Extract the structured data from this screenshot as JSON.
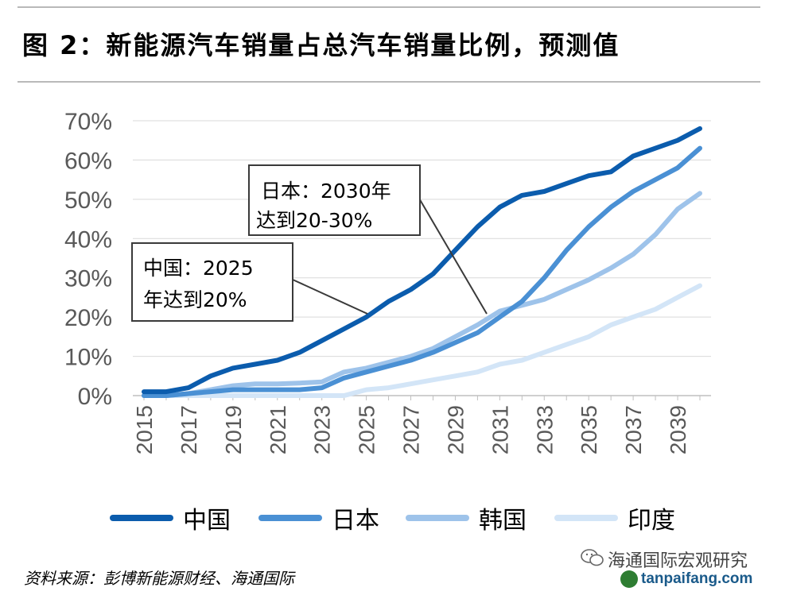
{
  "title": "图 2：新能源汽车销量占总汽车销量比例，预测值",
  "source": "资料来源：彭博新能源财经、海通国际",
  "watermark": {
    "account": "海通国际宏观研究",
    "site": "tanpaifang.com"
  },
  "annotations": [
    {
      "line1": "日本：2030年",
      "line2": "达到20-30%"
    },
    {
      "line1": "中国：2025",
      "line2": "年达到20%"
    }
  ],
  "colors": {
    "china": "#0b5cad",
    "japan": "#4a90d4",
    "korea": "#9ec3ea",
    "india": "#d3e5f7",
    "grid": "#d9d9d9",
    "axis_text": "#595959"
  },
  "chart_data": {
    "type": "line",
    "title": "图 2：新能源汽车销量占总汽车销量比例，预测值",
    "x": [
      2015,
      2016,
      2017,
      2018,
      2019,
      2020,
      2021,
      2022,
      2023,
      2024,
      2025,
      2026,
      2027,
      2028,
      2029,
      2030,
      2031,
      2032,
      2033,
      2034,
      2035,
      2036,
      2037,
      2038,
      2039,
      2040
    ],
    "x_tick_labels": [
      "2015",
      "2017",
      "2019",
      "2021",
      "2023",
      "2025",
      "2027",
      "2029",
      "2031",
      "2033",
      "2035",
      "2037",
      "2039"
    ],
    "y_tick_labels": [
      "0%",
      "10%",
      "20%",
      "30%",
      "40%",
      "50%",
      "60%",
      "70%"
    ],
    "ylim": [
      0,
      70
    ],
    "grid": true,
    "legend_position": "bottom",
    "series": [
      {
        "name": "中国",
        "color": "#0b5cad",
        "values": [
          1,
          1,
          2,
          5,
          7,
          8,
          9,
          11,
          14,
          17,
          20,
          24,
          27,
          31,
          37,
          43,
          48,
          51,
          52,
          54,
          56,
          57,
          61,
          63,
          65,
          68
        ]
      },
      {
        "name": "日本",
        "color": "#4a90d4",
        "values": [
          0,
          0,
          0.5,
          1,
          1.5,
          1.5,
          1.5,
          1.5,
          2,
          4.5,
          6,
          7.5,
          9,
          11,
          13.5,
          16,
          20,
          24,
          30,
          37,
          43,
          48,
          52,
          55,
          58,
          63
        ]
      },
      {
        "name": "韩国",
        "color": "#9ec3ea",
        "values": [
          0,
          0,
          0.5,
          1.5,
          2.5,
          3,
          3,
          3.2,
          3.5,
          6,
          7,
          8.5,
          10,
          12,
          15,
          18,
          21.5,
          23,
          24.5,
          27,
          29.5,
          32.5,
          36,
          41,
          47.5,
          51.5
        ]
      },
      {
        "name": "印度",
        "color": "#d3e5f7",
        "values": [
          0,
          0,
          0,
          0,
          0,
          0,
          0,
          0,
          0,
          0,
          1.5,
          2,
          3,
          4,
          5,
          6,
          8,
          9,
          11,
          13,
          15,
          18,
          20,
          22,
          25,
          28
        ]
      }
    ]
  }
}
